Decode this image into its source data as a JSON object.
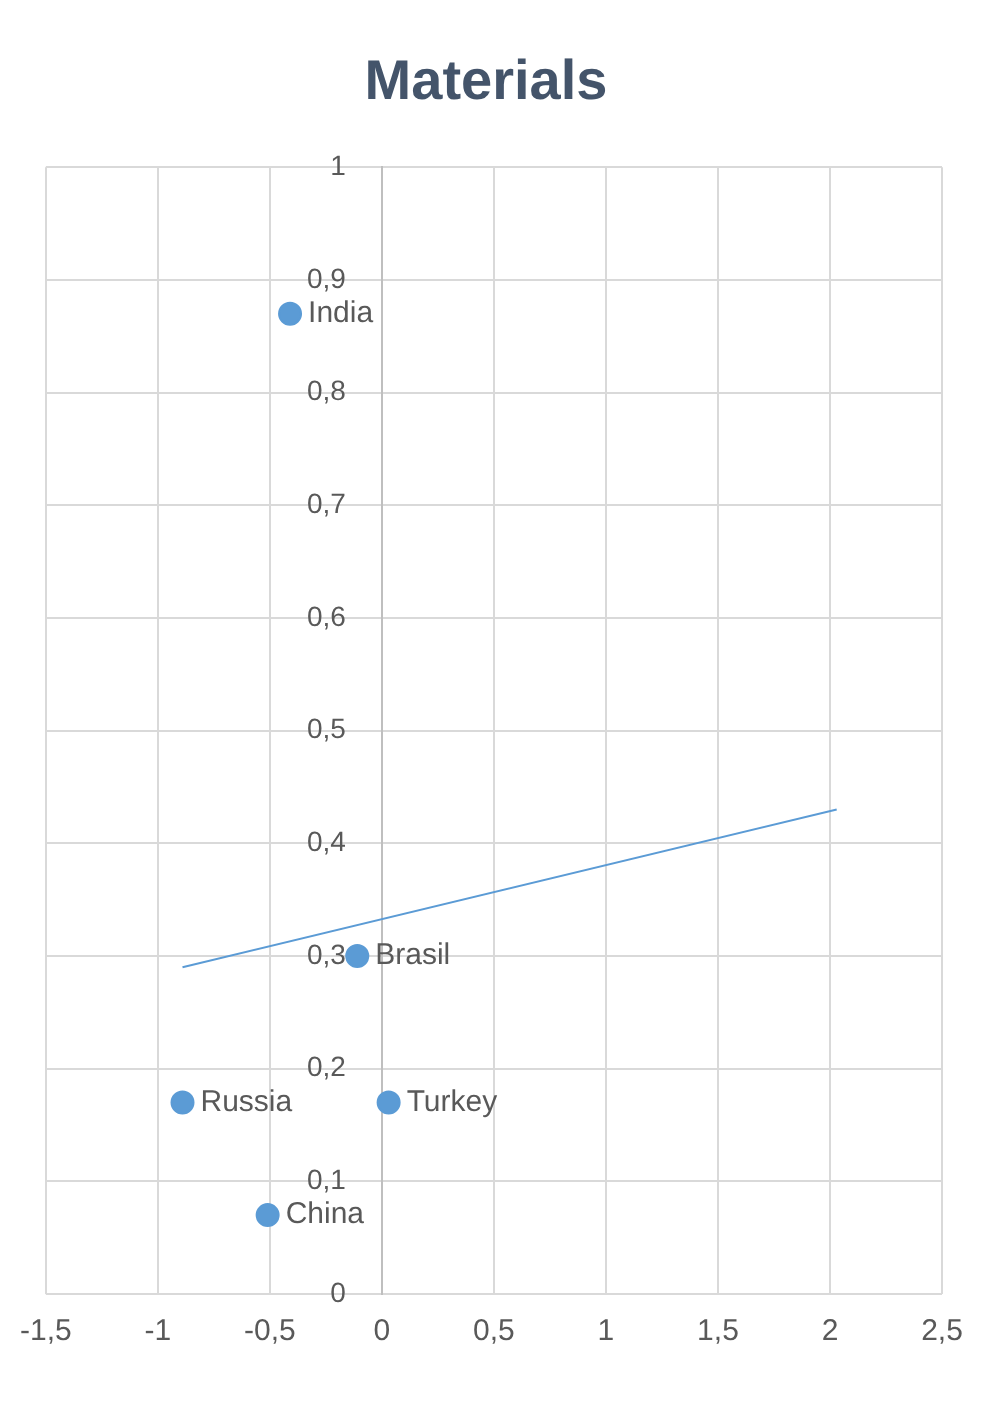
{
  "chart_data": {
    "type": "scatter",
    "title": "Materials",
    "series": [
      {
        "type": "scatter",
        "color": "#5b9bd5",
        "marker": "circle",
        "x": [
          -0.41,
          -0.11,
          0.03,
          -0.51,
          -0.89
        ],
        "values": [
          0.87,
          0.3,
          0.17,
          0.07,
          0.17
        ]
      },
      {
        "type": "line",
        "color": "#5b9bd5",
        "marker": "none",
        "x": [
          -0.89,
          2.03
        ],
        "values": [
          0.29,
          0.43
        ]
      }
    ],
    "annotations": [
      {
        "text": "India",
        "x": -0.41,
        "y": 0.87
      },
      {
        "text": "Brasil",
        "x": -0.11,
        "y": 0.3
      },
      {
        "text": "Turkey",
        "x": 0.03,
        "y": 0.17
      },
      {
        "text": "China",
        "x": -0.51,
        "y": 0.07
      },
      {
        "text": "Russia",
        "x": -0.89,
        "y": 0.17
      }
    ],
    "xlim": [
      -1.5,
      2.5
    ],
    "xticks": [
      {
        "value": -1.5,
        "label": "-1,5"
      },
      -1,
      {
        "value": -0.5,
        "label": "-0,5"
      },
      0,
      {
        "value": 0.5,
        "label": "0,5"
      },
      1,
      {
        "value": 1.5,
        "label": "1,5"
      },
      2,
      {
        "value": 2.5,
        "label": "2,5"
      }
    ],
    "ylim": [
      0,
      1
    ],
    "yticks": [
      0,
      {
        "value": 0.1,
        "label": "0,1"
      },
      {
        "value": 0.2,
        "label": "0,2"
      },
      {
        "value": 0.3,
        "label": "0,3"
      },
      {
        "value": 0.4,
        "label": "0,4"
      },
      {
        "value": 0.5,
        "label": "0,5"
      },
      {
        "value": 0.6,
        "label": "0,6"
      },
      {
        "value": 0.7,
        "label": "0,7"
      },
      {
        "value": 0.8,
        "label": "0,8"
      },
      {
        "value": 0.9,
        "label": "0,9"
      },
      1
    ],
    "grid": true
  }
}
